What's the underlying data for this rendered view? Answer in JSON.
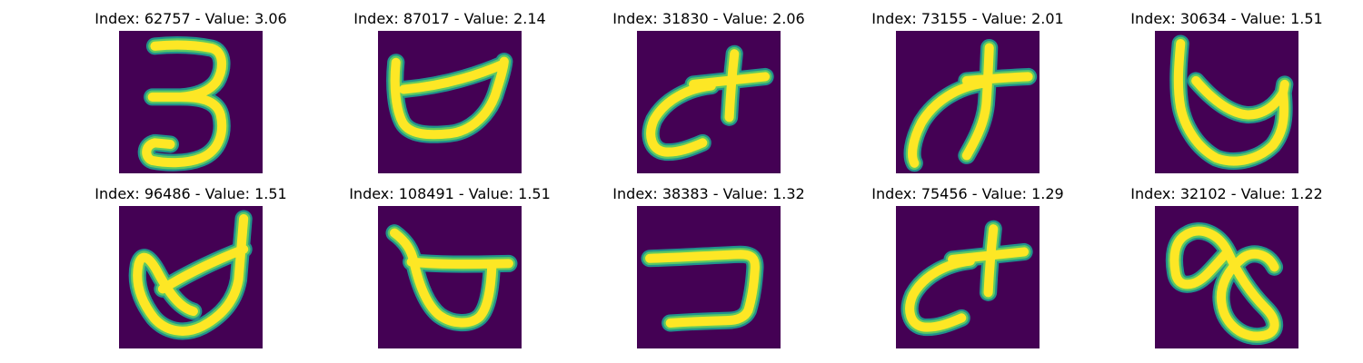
{
  "colors": {
    "background": "#440154",
    "stroke_outer": "#21918c",
    "stroke_mid": "#5ec962",
    "stroke_core": "#fde725",
    "title_text": "#000000"
  },
  "panels": [
    {
      "title": "Index: 62757 - Value: 3.06",
      "glyph": "numeral-3"
    },
    {
      "title": "Index: 87017 - Value: 2.14",
      "glyph": "cup-shape"
    },
    {
      "title": "Index: 31830 - Value: 2.06",
      "glyph": "curl-with-cross"
    },
    {
      "title": "Index: 73155 - Value: 2.01",
      "glyph": "thick-curl-with-cross"
    },
    {
      "title": "Index: 30634 - Value: 1.51",
      "glyph": "loop-with-stem"
    },
    {
      "title": "Index: 96486 - Value: 1.51",
      "glyph": "slanted-loop-with-stem"
    },
    {
      "title": "Index: 108491 - Value: 1.51",
      "glyph": "bowl-with-bar"
    },
    {
      "title": "Index: 38383 - Value: 1.32",
      "glyph": "hook-shape"
    },
    {
      "title": "Index: 75456 - Value: 1.29",
      "glyph": "curl-with-cross"
    },
    {
      "title": "Index: 32102 - Value: 1.22",
      "glyph": "figure-eight"
    }
  ]
}
